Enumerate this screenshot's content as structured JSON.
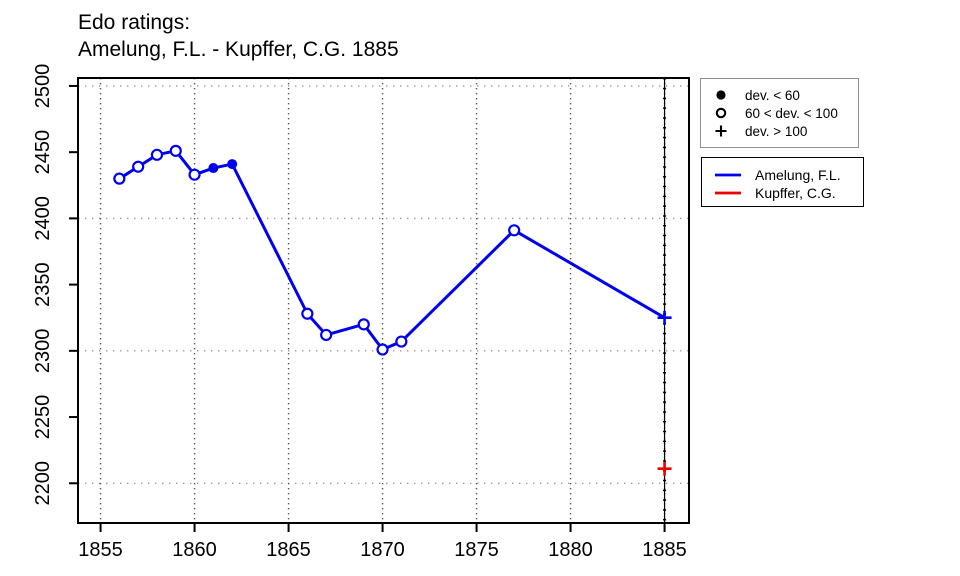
{
  "title": {
    "line1": "Edo ratings:",
    "line2": "Amelung, F.L. - Kupffer, C.G. 1885"
  },
  "chart_data": {
    "type": "line",
    "title": "Edo ratings: Amelung, F.L. - Kupffer, C.G. 1885",
    "xlabel": "",
    "ylabel": "",
    "xlim": [
      1853.8,
      1886.3
    ],
    "ylim": [
      2170,
      2506
    ],
    "x_ticks": [
      1855,
      1860,
      1865,
      1870,
      1875,
      1880,
      1885
    ],
    "y_ticks": [
      2200,
      2250,
      2300,
      2350,
      2400,
      2450,
      2500
    ],
    "x_gridlines": [
      1855,
      1860,
      1865,
      1870,
      1875,
      1880,
      1885
    ],
    "y_gridlines": [
      2200,
      2300,
      2400,
      2500
    ],
    "grid": true,
    "rating_year_line": 1885,
    "legend_position": "outside-right",
    "colors": {
      "amelung": "#0000EE",
      "kupffer": "#EE0000",
      "grid_horizontal": "#9a9a9a",
      "grid_vertical": "#555555",
      "axis": "#000000"
    },
    "marker_legend": [
      {
        "symbol": "filled-circle",
        "label": "dev. < 60"
      },
      {
        "symbol": "open-circle",
        "label": "60 < dev. < 100"
      },
      {
        "symbol": "plus",
        "label": "dev. > 100"
      }
    ],
    "series": [
      {
        "name": "Amelung, F.L.",
        "color": "#0000EE",
        "draw_line": true,
        "points": [
          {
            "year": 1856,
            "rating": 2430,
            "marker": "open"
          },
          {
            "year": 1857,
            "rating": 2439,
            "marker": "open"
          },
          {
            "year": 1858,
            "rating": 2448,
            "marker": "open"
          },
          {
            "year": 1859,
            "rating": 2451,
            "marker": "open"
          },
          {
            "year": 1860,
            "rating": 2433,
            "marker": "open"
          },
          {
            "year": 1861,
            "rating": 2438,
            "marker": "filled"
          },
          {
            "year": 1862,
            "rating": 2441,
            "marker": "filled"
          },
          {
            "year": 1866,
            "rating": 2328,
            "marker": "open"
          },
          {
            "year": 1867,
            "rating": 2312,
            "marker": "open"
          },
          {
            "year": 1869,
            "rating": 2320,
            "marker": "open"
          },
          {
            "year": 1870,
            "rating": 2301,
            "marker": "open"
          },
          {
            "year": 1871,
            "rating": 2307,
            "marker": "open"
          },
          {
            "year": 1877,
            "rating": 2391,
            "marker": "open"
          },
          {
            "year": 1885,
            "rating": 2325,
            "marker": "plus"
          }
        ]
      },
      {
        "name": "Kupffer, C.G.",
        "color": "#EE0000",
        "draw_line": false,
        "points": [
          {
            "year": 1885,
            "rating": 2211,
            "marker": "plus"
          }
        ]
      }
    ]
  }
}
